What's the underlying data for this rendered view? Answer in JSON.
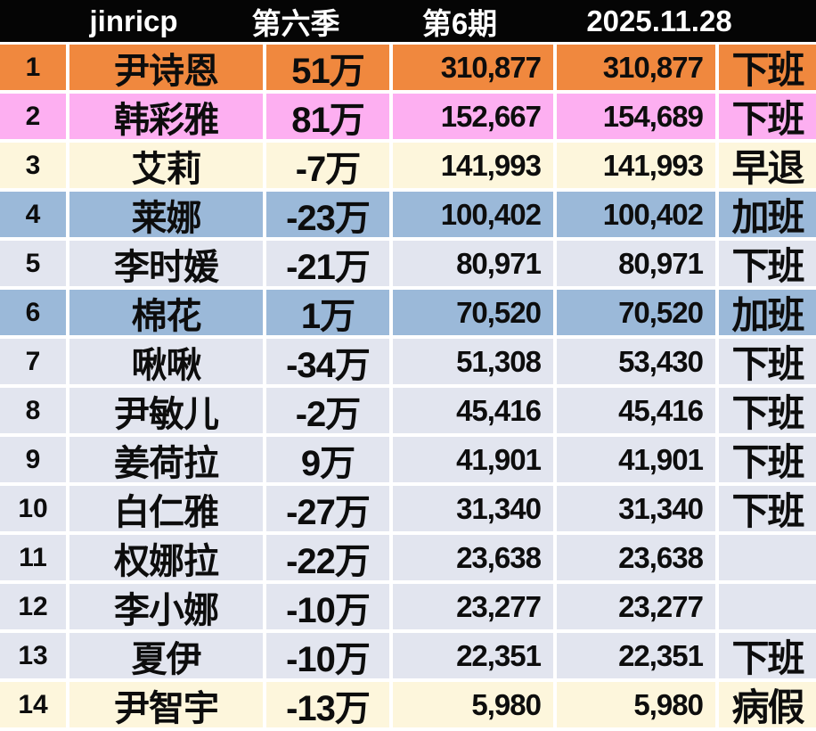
{
  "title_bar": {
    "app": "jinricp",
    "season": "第六季",
    "episode": "第6期",
    "date": "2025.11.28"
  },
  "colors": {
    "header_bg": "#050505",
    "header_text": "#ffffff",
    "gridline": "#ffffff",
    "text": "#0d0d0d",
    "orange": "#f0883e",
    "pink": "#fdaff1",
    "cream": "#fdf6dc",
    "blue": "#9bb9d9",
    "lavender": "#e2e5ef"
  },
  "chart_data": {
    "type": "table",
    "title": "jinricp 第六季 第6期 2025.11.28",
    "columns": [
      "rank",
      "name",
      "wan_change",
      "episode_score",
      "total_score",
      "status"
    ],
    "rows": [
      {
        "rank": "1",
        "name": "尹诗恩",
        "wan": "51万",
        "ep": "310,877",
        "total": "310,877",
        "status": "下班",
        "theme": "orange"
      },
      {
        "rank": "2",
        "name": "韩彩雅",
        "wan": "81万",
        "ep": "152,667",
        "total": "154,689",
        "status": "下班",
        "theme": "pink"
      },
      {
        "rank": "3",
        "name": "艾莉",
        "wan": "-7万",
        "ep": "141,993",
        "total": "141,993",
        "status": "早退",
        "theme": "cream"
      },
      {
        "rank": "4",
        "name": "莱娜",
        "wan": "-23万",
        "ep": "100,402",
        "total": "100,402",
        "status": "加班",
        "theme": "blue"
      },
      {
        "rank": "5",
        "name": "李时媛",
        "wan": "-21万",
        "ep": "80,971",
        "total": "80,971",
        "status": "下班",
        "theme": "lavender"
      },
      {
        "rank": "6",
        "name": "棉花",
        "wan": "1万",
        "ep": "70,520",
        "total": "70,520",
        "status": "加班",
        "theme": "blue"
      },
      {
        "rank": "7",
        "name": "啾啾",
        "wan": "-34万",
        "ep": "51,308",
        "total": "53,430",
        "status": "下班",
        "theme": "lavender"
      },
      {
        "rank": "8",
        "name": "尹敏儿",
        "wan": "-2万",
        "ep": "45,416",
        "total": "45,416",
        "status": "下班",
        "theme": "lavender"
      },
      {
        "rank": "9",
        "name": "姜荷拉",
        "wan": "9万",
        "ep": "41,901",
        "total": "41,901",
        "status": "下班",
        "theme": "lavender"
      },
      {
        "rank": "10",
        "name": "白仁雅",
        "wan": "-27万",
        "ep": "31,340",
        "total": "31,340",
        "status": "下班",
        "theme": "lavender"
      },
      {
        "rank": "11",
        "name": "权娜拉",
        "wan": "-22万",
        "ep": "23,638",
        "total": "23,638",
        "status": "",
        "theme": "lavender"
      },
      {
        "rank": "12",
        "name": "李小娜",
        "wan": "-10万",
        "ep": "23,277",
        "total": "23,277",
        "status": "",
        "theme": "lavender"
      },
      {
        "rank": "13",
        "name": "夏伊",
        "wan": "-10万",
        "ep": "22,351",
        "total": "22,351",
        "status": "下班",
        "theme": "lavender"
      },
      {
        "rank": "14",
        "name": "尹智宇",
        "wan": "-13万",
        "ep": "5,980",
        "total": "5,980",
        "status": "病假",
        "theme": "cream"
      }
    ]
  }
}
